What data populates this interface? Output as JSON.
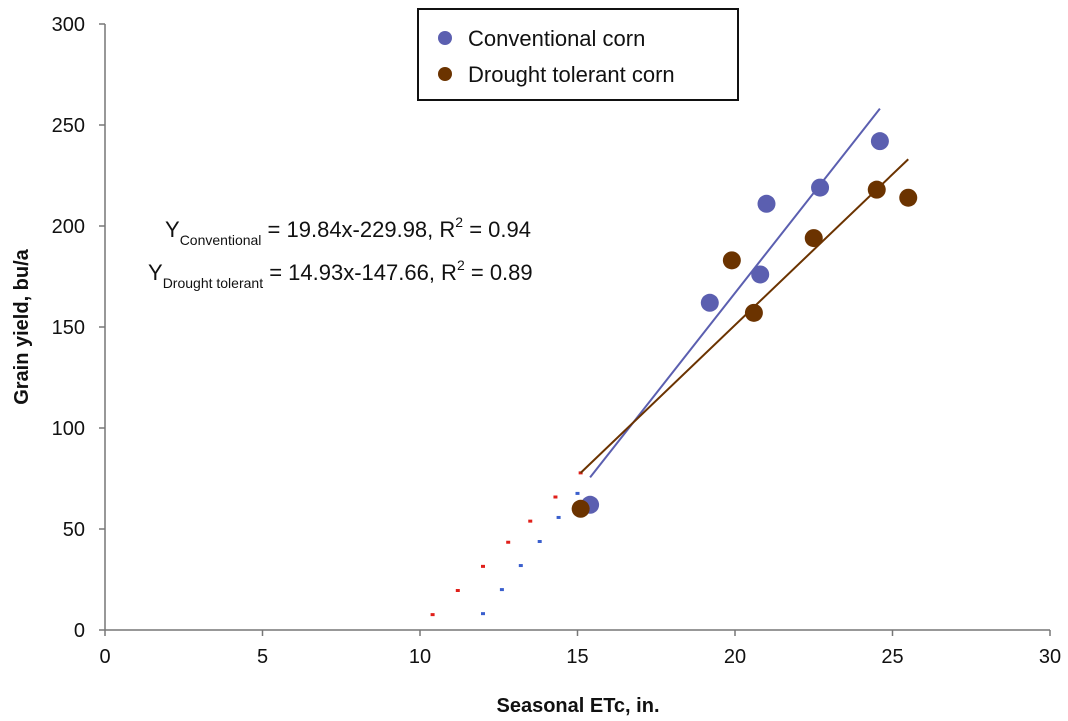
{
  "chart_data": {
    "type": "scatter",
    "xlabel": "Seasonal ETc, in.",
    "ylabel": "Grain yield, bu/a",
    "xlim": [
      0,
      30
    ],
    "ylim": [
      0,
      300
    ],
    "xticks": [
      "0",
      "5",
      "10",
      "15",
      "20",
      "25",
      "30"
    ],
    "yticks": [
      "0",
      "50",
      "100",
      "150",
      "200",
      "250",
      "300"
    ],
    "grid": false,
    "legend_position": "top-center",
    "series": [
      {
        "name": "Conventional corn",
        "color": "#5b5fb0",
        "points": [
          {
            "x": 15.4,
            "y": 62
          },
          {
            "x": 19.2,
            "y": 162
          },
          {
            "x": 20.8,
            "y": 176
          },
          {
            "x": 21.0,
            "y": 211
          },
          {
            "x": 22.7,
            "y": 219
          },
          {
            "x": 24.6,
            "y": 242
          }
        ],
        "trendline": {
          "slope": 19.84,
          "intercept": -229.98,
          "x_range": [
            15.4,
            24.6
          ]
        },
        "extrapolation": {
          "color": "#3a5fcd",
          "x": [
            12.0,
            12.6,
            13.2,
            13.8,
            14.4,
            15.0
          ]
        }
      },
      {
        "name": "Drought tolerant corn",
        "color": "#6b3300",
        "points": [
          {
            "x": 15.1,
            "y": 60
          },
          {
            "x": 19.9,
            "y": 183
          },
          {
            "x": 20.6,
            "y": 157
          },
          {
            "x": 22.5,
            "y": 194
          },
          {
            "x": 24.5,
            "y": 218
          },
          {
            "x": 25.5,
            "y": 214
          }
        ],
        "trendline": {
          "slope": 14.93,
          "intercept": -147.66,
          "x_range": [
            15.1,
            25.5
          ]
        },
        "extrapolation": {
          "color": "#e0201a",
          "x": [
            10.4,
            11.2,
            12.0,
            12.8,
            13.5,
            14.3,
            15.1
          ]
        }
      }
    ],
    "equations": [
      {
        "prefix": "Y",
        "subscript": "Conventional",
        "text": " = 19.84x-229.98, R",
        "sup": "2",
        "suffix": " = 0.94"
      },
      {
        "prefix": "Y",
        "subscript": "Drought tolerant",
        "text": " = 14.93x-147.66, R",
        "sup": "2",
        "suffix": " = 0.89"
      }
    ]
  }
}
